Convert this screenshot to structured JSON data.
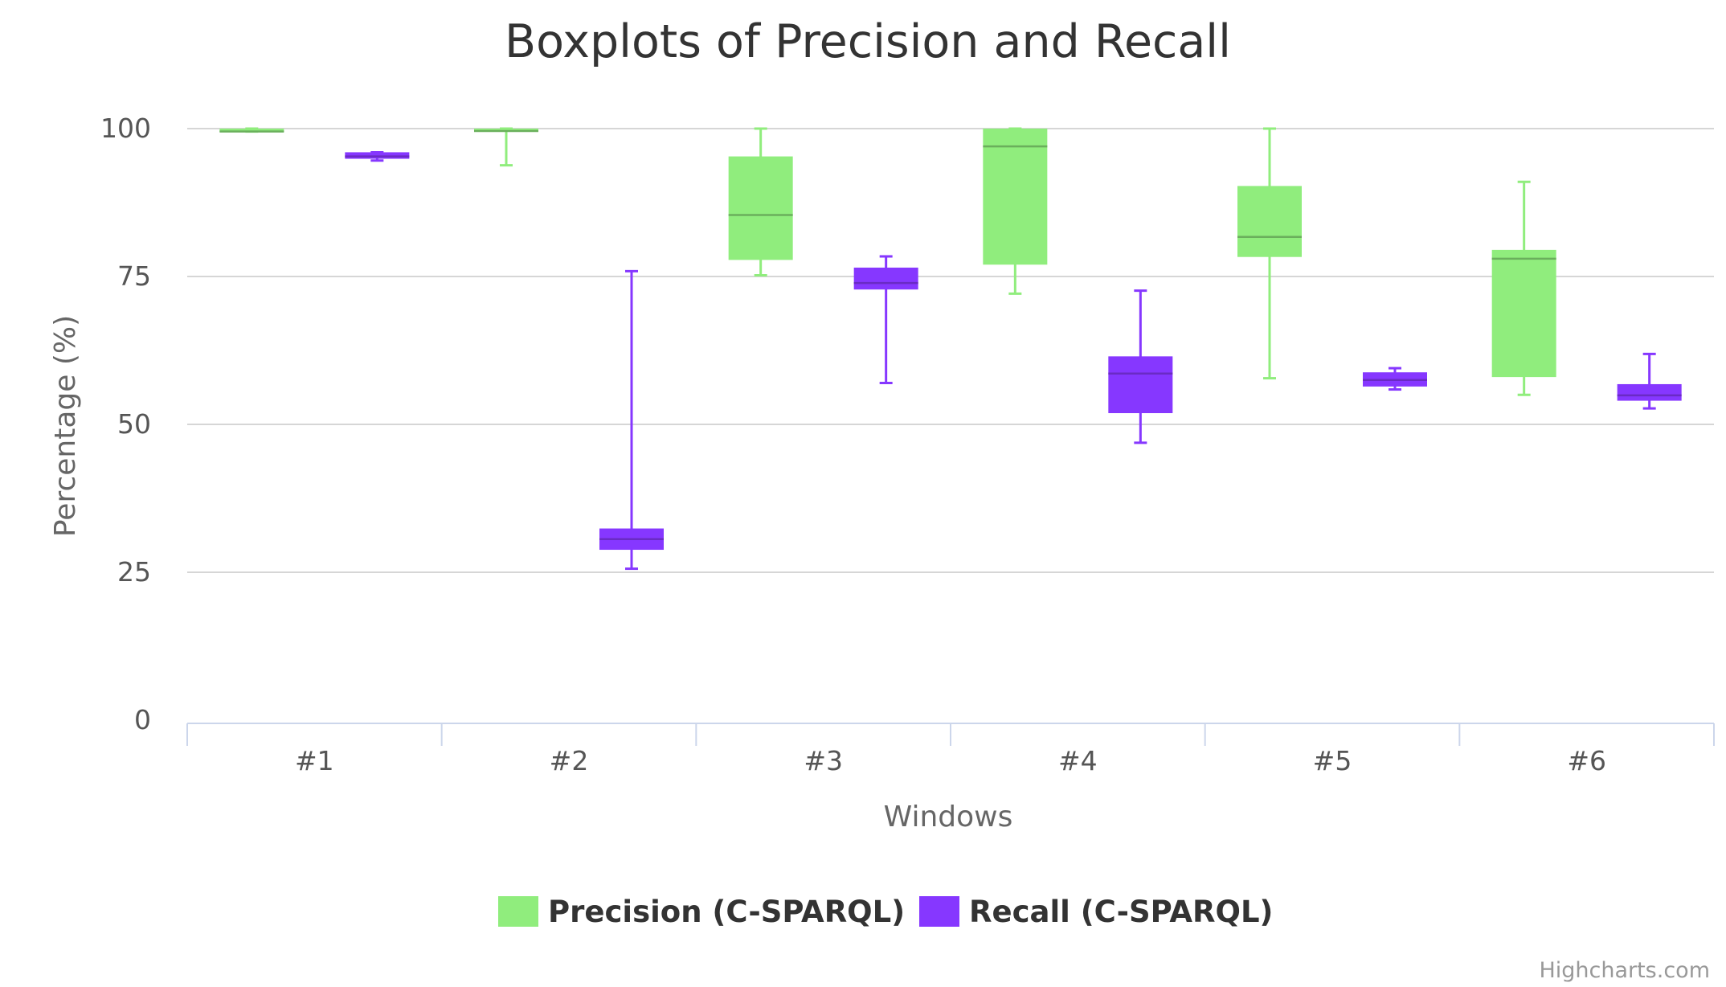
{
  "credits": "Highcharts.com",
  "chart_data": {
    "type": "boxplot",
    "title": "Boxplots of Precision and Recall",
    "xlabel": "Windows",
    "ylabel": "Percentage (%)",
    "categories": [
      "#1",
      "#2",
      "#3",
      "#4",
      "#5",
      "#6"
    ],
    "ylim": [
      0,
      100
    ],
    "yticks": [
      "0",
      "25",
      "50",
      "75",
      "100"
    ],
    "grid": true,
    "legend_position": "bottom-center",
    "series": [
      {
        "name": "Precision (C-SPARQL)",
        "color": "#90ED7D",
        "median_color": "#6AAF5C",
        "boxes": [
          {
            "low": 99.5,
            "q1": 99.5,
            "median": 99.5,
            "q3": 100,
            "high": 100
          },
          {
            "low": 93.8,
            "q1": 99.5,
            "median": 99.6,
            "q3": 100,
            "high": 100
          },
          {
            "low": 75.2,
            "q1": 77.8,
            "median": 85.4,
            "q3": 95.3,
            "high": 100
          },
          {
            "low": 72.1,
            "q1": 77.0,
            "median": 97.0,
            "q3": 100,
            "high": 100
          },
          {
            "low": 57.8,
            "q1": 78.3,
            "median": 81.7,
            "q3": 90.3,
            "high": 100
          },
          {
            "low": 55.0,
            "q1": 58.0,
            "median": 78.0,
            "q3": 79.5,
            "high": 91.0
          }
        ]
      },
      {
        "name": "Recall (C-SPARQL)",
        "color": "#8637FF",
        "median_color": "#6A2BC4",
        "boxes": [
          {
            "low": 94.6,
            "q1": 94.9,
            "median": 95.3,
            "q3": 96.0,
            "high": 96.0
          },
          {
            "low": 25.6,
            "q1": 28.8,
            "median": 30.6,
            "q3": 32.4,
            "high": 75.9
          },
          {
            "low": 57.0,
            "q1": 72.8,
            "median": 73.9,
            "q3": 76.5,
            "high": 78.4
          },
          {
            "low": 46.9,
            "q1": 51.9,
            "median": 58.6,
            "q3": 61.5,
            "high": 72.6
          },
          {
            "low": 55.9,
            "q1": 56.4,
            "median": 57.5,
            "q3": 58.8,
            "high": 59.5
          },
          {
            "low": 52.7,
            "q1": 54.0,
            "median": 54.9,
            "q3": 56.8,
            "high": 61.9
          }
        ]
      }
    ]
  }
}
